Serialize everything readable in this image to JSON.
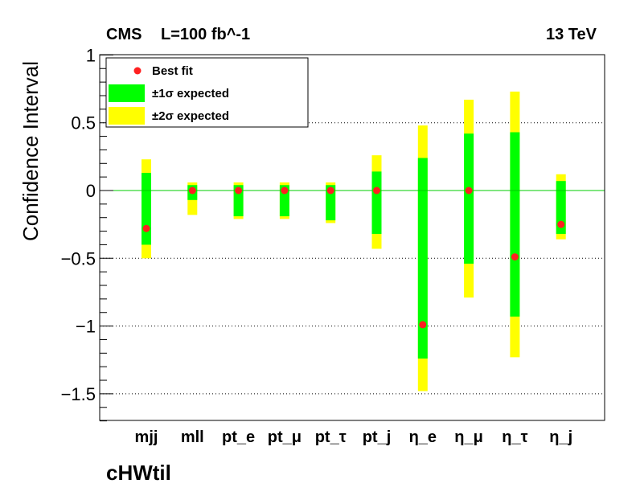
{
  "header": {
    "experiment": "CMS",
    "luminosity": "L=100 fb^-1",
    "energy": "13 TeV"
  },
  "chart_data": {
    "type": "interval",
    "title": "",
    "xlabel": "cHWtil",
    "ylabel": "Confidence Interval",
    "ylim": [
      -1.7,
      1.0
    ],
    "y_ticks": [
      {
        "value": 1,
        "label": "1"
      },
      {
        "value": 0.5,
        "label": "0.5"
      },
      {
        "value": 0,
        "label": "0"
      },
      {
        "value": -0.5,
        "label": "−0.5"
      },
      {
        "value": -1,
        "label": "−1"
      },
      {
        "value": -1.5,
        "label": "−1.5"
      }
    ],
    "grid_lines": [
      0.5,
      -0.5,
      -1.0,
      -1.5
    ],
    "zero_line_color": "#00cc00",
    "colors": {
      "best_fit": "#ff2020",
      "one_sigma": "#00ff00",
      "two_sigma": "#ffff00"
    },
    "legend": {
      "placement": "top-left",
      "entries": [
        {
          "key": "best_fit",
          "label": "Best fit"
        },
        {
          "key": "one_sigma",
          "label": "±1σ expected"
        },
        {
          "key": "two_sigma",
          "label": "±2σ expected"
        }
      ]
    },
    "categories": [
      "mjj",
      "mll",
      "pt_e",
      "pt_μ",
      "pt_τ",
      "pt_j",
      "η_e",
      "η_μ",
      "η_τ",
      "η_j"
    ],
    "best_fit": [
      -0.28,
      0.0,
      0.0,
      0.0,
      0.0,
      0.0,
      -0.99,
      0.0,
      -0.49,
      -0.25
    ],
    "one_sigma": [
      [
        -0.4,
        0.13
      ],
      [
        -0.07,
        0.04
      ],
      [
        -0.19,
        0.04
      ],
      [
        -0.19,
        0.04
      ],
      [
        -0.22,
        0.04
      ],
      [
        -0.32,
        0.14
      ],
      [
        -1.24,
        0.24
      ],
      [
        -0.54,
        0.42
      ],
      [
        -0.93,
        0.43
      ],
      [
        -0.32,
        0.07
      ]
    ],
    "two_sigma": [
      [
        -0.5,
        0.23
      ],
      [
        -0.18,
        0.06
      ],
      [
        -0.21,
        0.06
      ],
      [
        -0.21,
        0.06
      ],
      [
        -0.24,
        0.06
      ],
      [
        -0.43,
        0.26
      ],
      [
        -1.48,
        0.48
      ],
      [
        -0.79,
        0.67
      ],
      [
        -1.23,
        0.73
      ],
      [
        -0.36,
        0.12
      ]
    ]
  }
}
